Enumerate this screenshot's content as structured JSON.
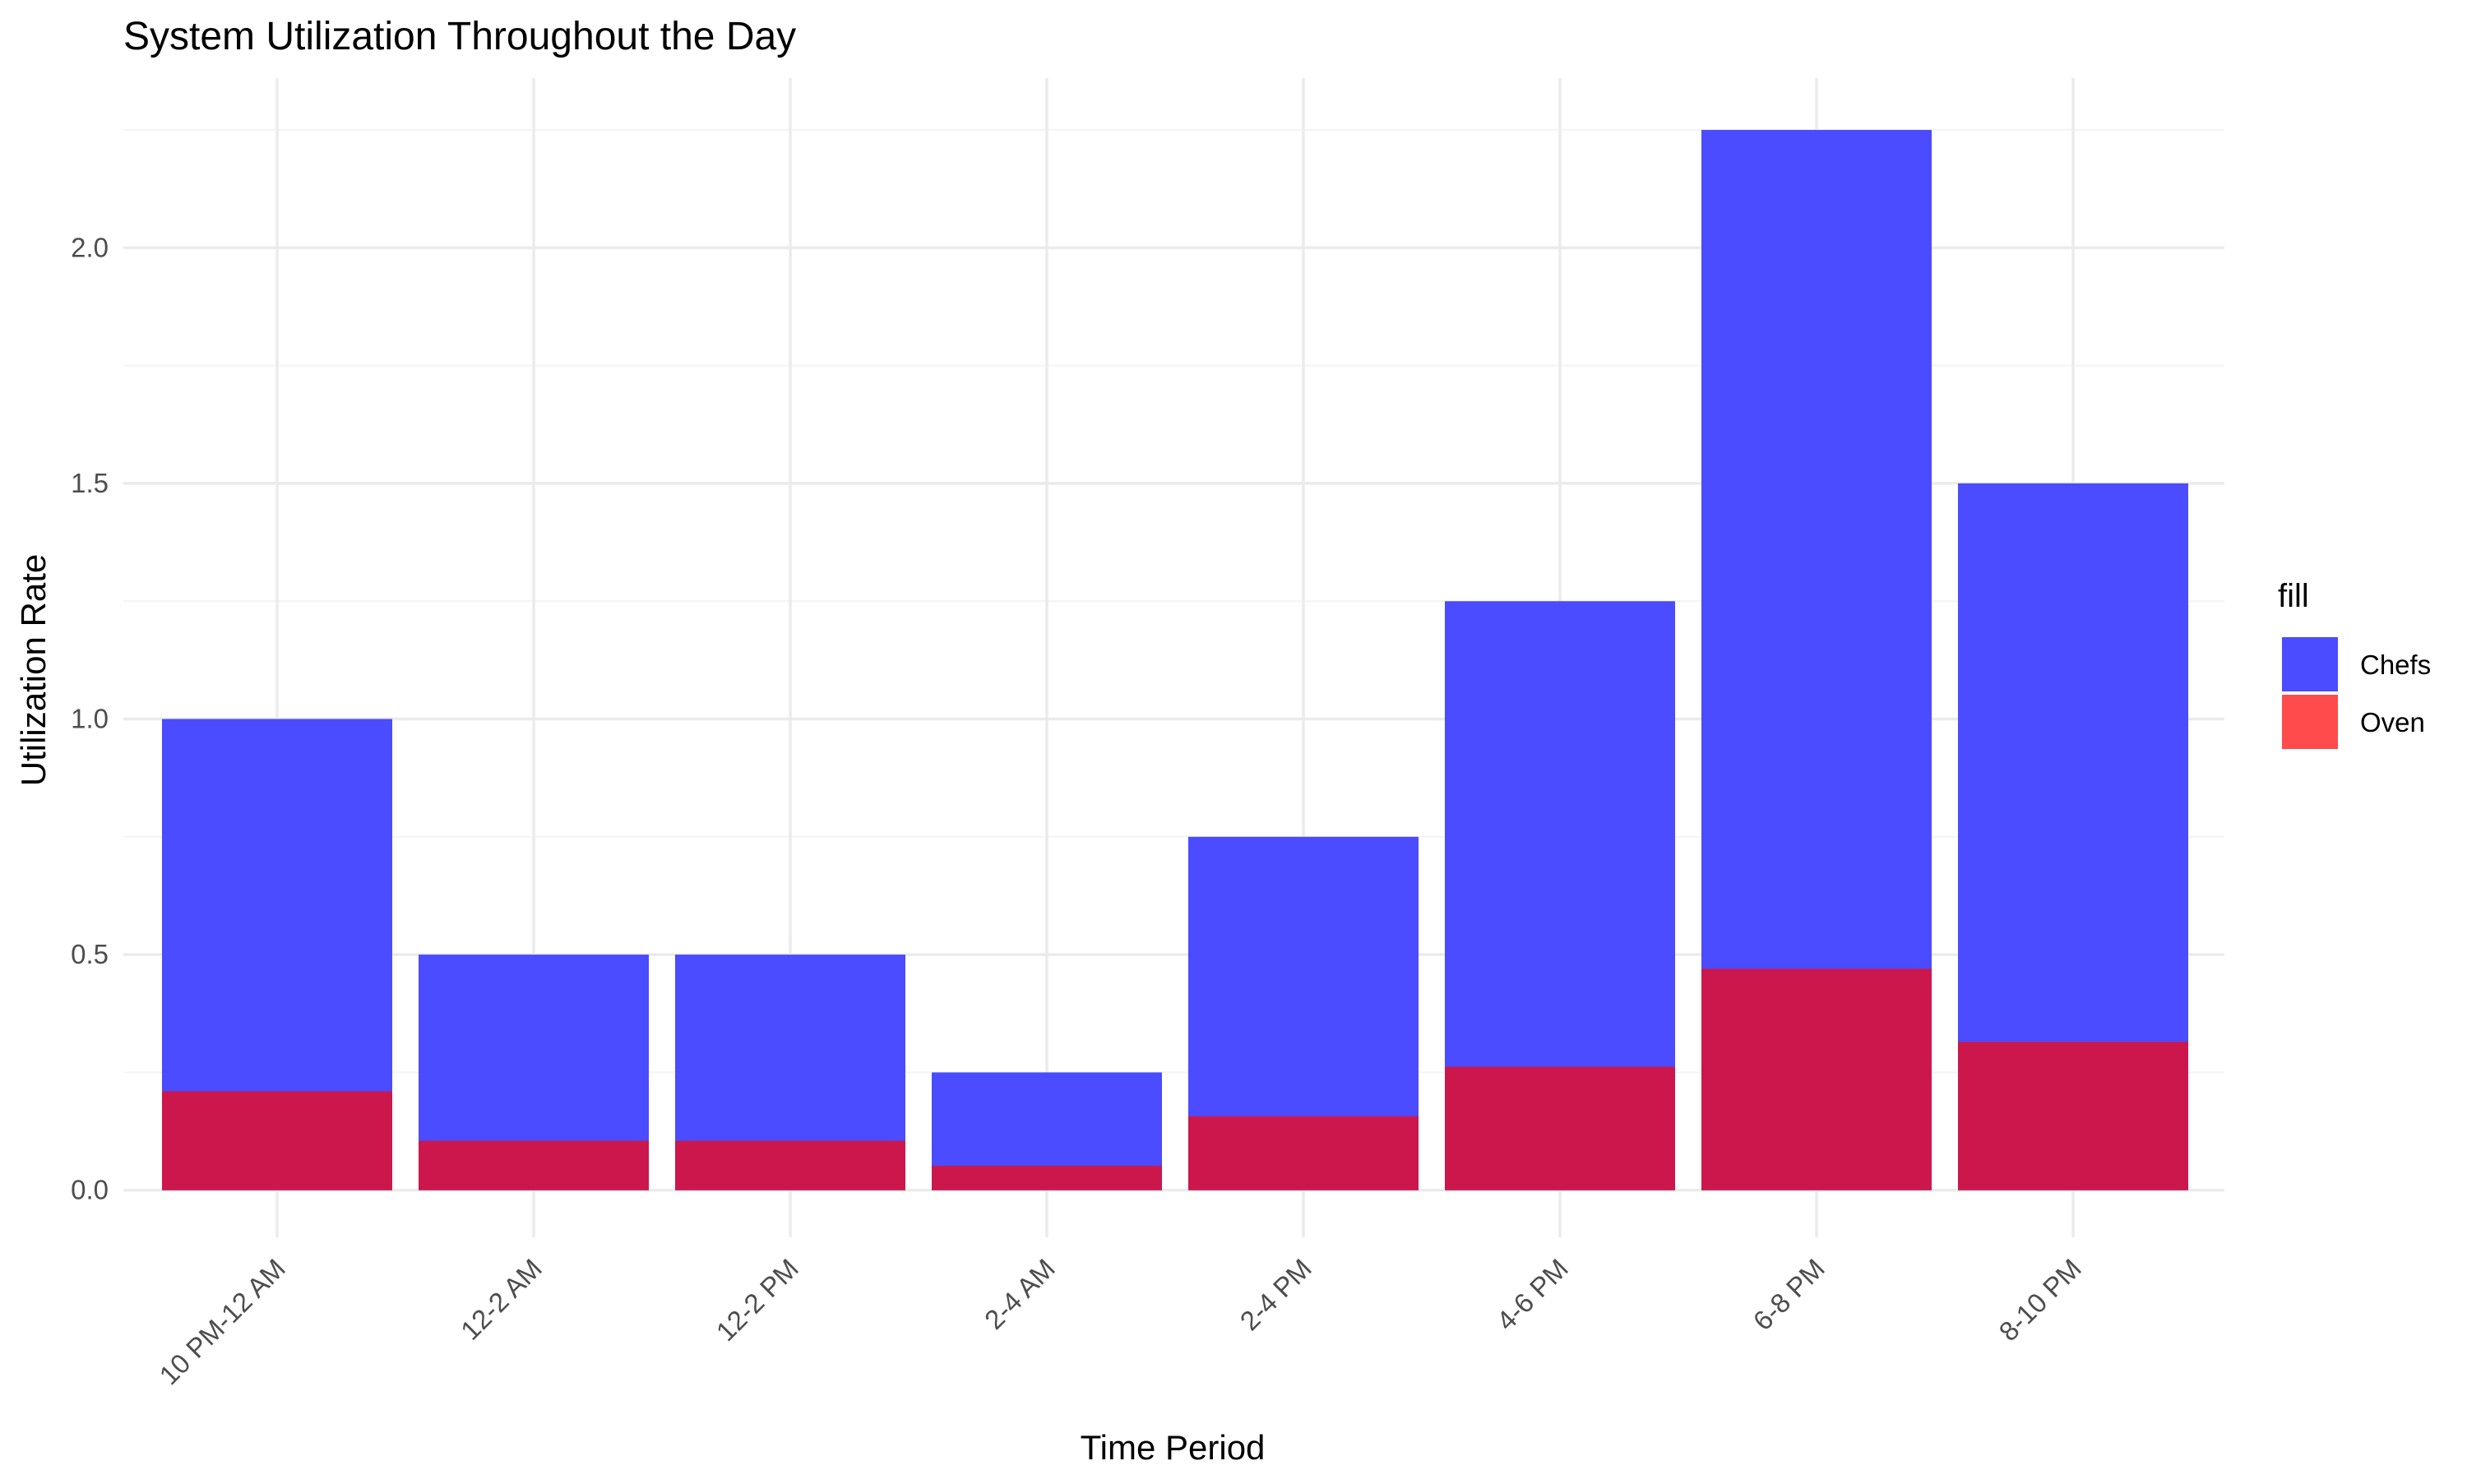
{
  "chart_data": {
    "type": "bar",
    "title": "System Utilization Throughout the Day",
    "xlabel": "Time Period",
    "ylabel": "Utilization Rate",
    "categories": [
      "10 PM-12 AM",
      "12-2 AM",
      "12-2 PM",
      "2-4 AM",
      "2-4 PM",
      "4-6 PM",
      "6-8 PM",
      "8-10 PM"
    ],
    "series": [
      {
        "name": "Chefs",
        "color": "#4b4bff",
        "values": [
          1.0,
          0.5,
          0.5,
          0.25,
          0.75,
          1.25,
          2.25,
          1.5
        ]
      },
      {
        "name": "Oven",
        "color": "#cc174c",
        "values": [
          0.21,
          0.105,
          0.105,
          0.052,
          0.157,
          0.262,
          0.47,
          0.315
        ]
      }
    ],
    "overlay": true,
    "ylim": [
      -0.1,
      2.36
    ],
    "yticks": [
      0.0,
      0.5,
      1.0,
      1.5,
      2.0
    ],
    "ytick_labels": [
      "0.0",
      "0.5",
      "1.0",
      "1.5",
      "2.0"
    ],
    "grid": true,
    "legend": {
      "title": "fill",
      "position": "right",
      "items": [
        {
          "label": "Chefs",
          "color": "#4b4bff"
        },
        {
          "label": "Oven",
          "color": "#ff4b4b"
        }
      ]
    }
  }
}
